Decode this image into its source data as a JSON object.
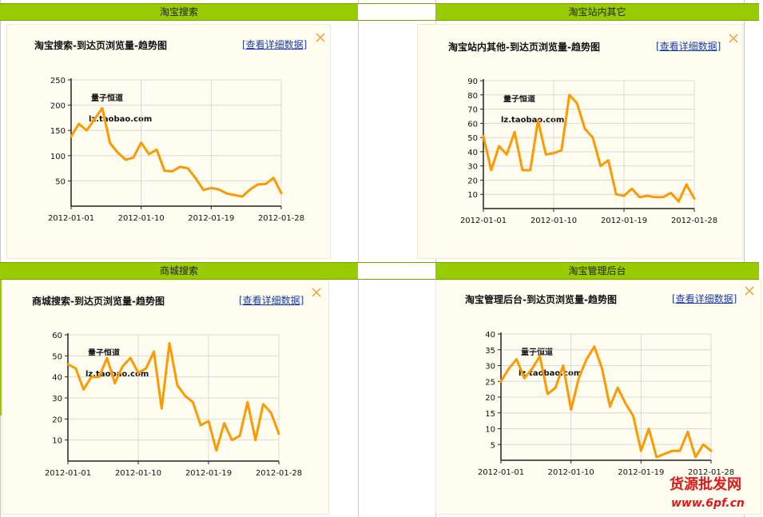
{
  "sections": [
    {
      "label": "淘宝搜索"
    },
    {
      "label": "淘宝站内其它"
    },
    {
      "label": "商城搜索"
    },
    {
      "label": "淘宝管理后台"
    }
  ],
  "detail_link": "[查看详细数据]",
  "watermark": {
    "line1": "量子恒道",
    "line2": "lz.taobao.com"
  },
  "site_watermark": {
    "line1": "货源批发网",
    "line2": "www.6pf.cn"
  },
  "colors": {
    "series": "#ff9900",
    "bar": "#99cc00",
    "panel": "#fffdf0",
    "grid": "#d9d9d9",
    "close": "#f0a030"
  },
  "chart_data": [
    {
      "type": "line",
      "title": "淘宝搜索-到达页浏览量-趋势图",
      "x_ticks": [
        "2012-01-01",
        "2012-01-10",
        "2012-01-19",
        "2012-01-28"
      ],
      "yticks": [
        50,
        100,
        150,
        200,
        250
      ],
      "ylim": [
        0,
        250
      ],
      "grid": true,
      "values": [
        138,
        163,
        150,
        172,
        194,
        125,
        106,
        92,
        96,
        126,
        103,
        112,
        70,
        69,
        78,
        75,
        55,
        32,
        36,
        33,
        25,
        22,
        19,
        33,
        43,
        44,
        56,
        26
      ]
    },
    {
      "type": "line",
      "title": "淘宝站内其他-到达页浏览量-趋势图",
      "x_ticks": [
        "2012-01-01",
        "2012-01-10",
        "2012-01-19",
        "2012-01-28"
      ],
      "yticks": [
        10,
        20,
        30,
        40,
        50,
        60,
        70,
        80,
        90
      ],
      "ylim": [
        0,
        90
      ],
      "grid": true,
      "values": [
        51,
        27,
        44,
        38,
        54,
        27,
        27,
        62,
        38,
        39,
        41,
        80,
        74,
        56,
        50,
        30,
        34,
        10,
        9,
        14,
        8,
        9,
        8,
        8,
        11,
        5,
        17,
        7
      ]
    },
    {
      "type": "line",
      "title": "商城搜索-到达页浏览量-趋势图",
      "x_ticks": [
        "2012-01-01",
        "2012-01-10",
        "2012-01-19",
        "2012-01-28"
      ],
      "yticks": [
        10,
        20,
        30,
        40,
        50,
        60
      ],
      "ylim": [
        0,
        60
      ],
      "grid": true,
      "values": [
        46,
        44,
        34,
        40,
        40,
        49,
        37,
        45,
        49,
        42,
        44,
        52,
        25,
        56,
        36,
        31,
        28,
        17,
        19,
        5,
        18,
        10,
        12,
        28,
        10,
        27,
        23,
        13
      ]
    },
    {
      "type": "line",
      "title": "淘宝管理后台-到达页浏览量-趋势图",
      "x_ticks": [
        "2012-01-01",
        "2012-01-10",
        "2012-01-19",
        "2012-01-28"
      ],
      "yticks": [
        5,
        10,
        15,
        20,
        25,
        30,
        35,
        40
      ],
      "ylim": [
        0,
        40
      ],
      "grid": true,
      "values": [
        25,
        29,
        32,
        26,
        29,
        33,
        21,
        23,
        30,
        16,
        26,
        32,
        36,
        29,
        17,
        23,
        18,
        14,
        3,
        10,
        1,
        2,
        3,
        3,
        9,
        1,
        5,
        3
      ]
    }
  ]
}
